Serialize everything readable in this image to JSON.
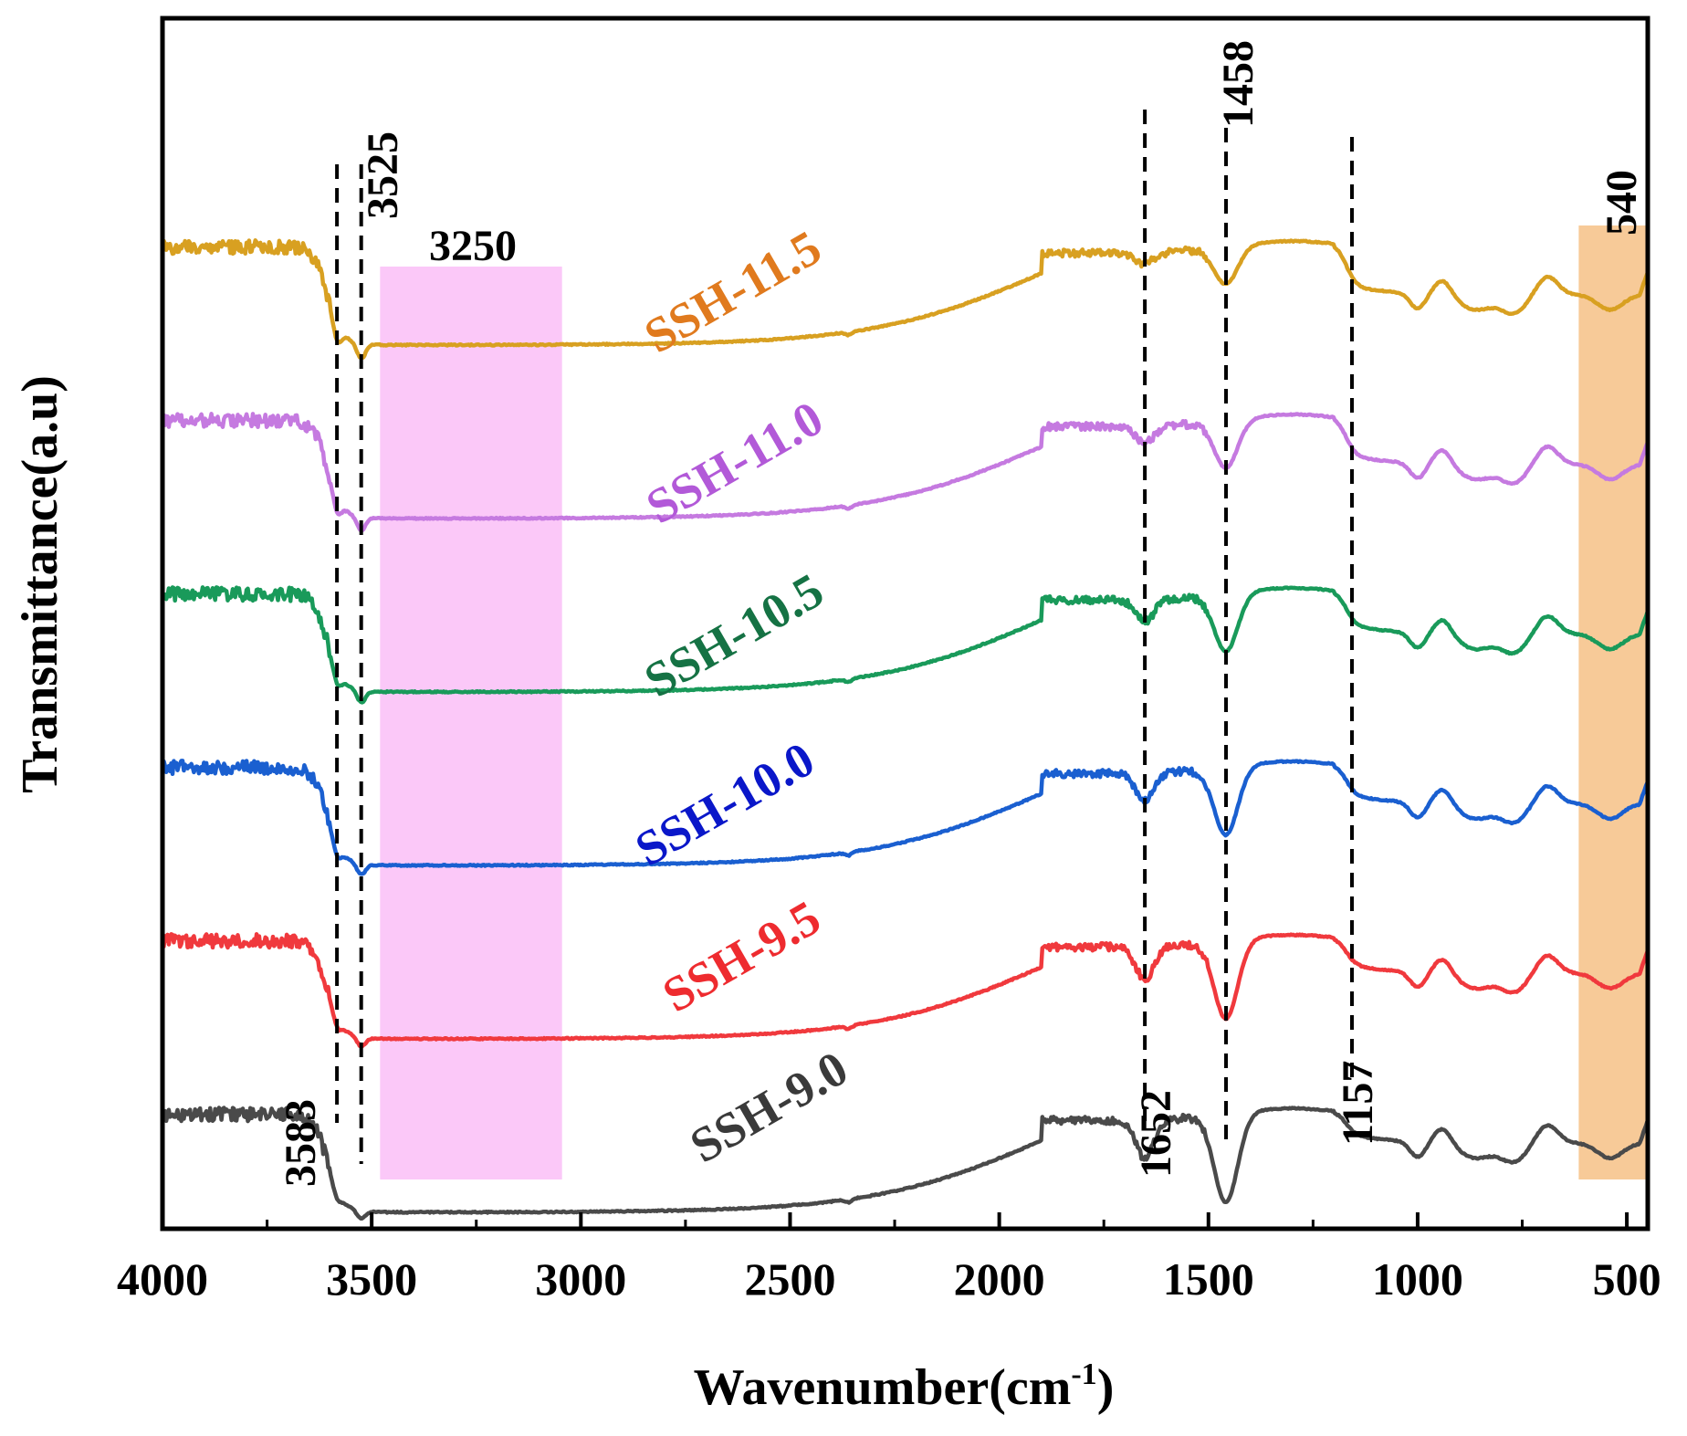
{
  "chart_data": {
    "type": "line",
    "title": "",
    "xlabel": "Wavenumber(cm",
    "xlabel_superscript": "-1",
    "xlabel_suffix": ")",
    "ylabel": "Transmittance(a.u)",
    "xlim": [
      4000,
      450
    ],
    "x_reversed": true,
    "y_ticks_shown": false,
    "x_ticks": [
      4000,
      3500,
      3000,
      2500,
      2000,
      1500,
      1000,
      500
    ],
    "x_tick_labels": [
      "4000",
      "3500",
      "3000",
      "2500",
      "2000",
      "1500",
      "1000",
      "500"
    ],
    "peak_lines": [
      {
        "name": "peak-line-3583",
        "x": 3583,
        "label": "3583"
      },
      {
        "name": "peak-line-3525",
        "x": 3525,
        "label": "3525"
      },
      {
        "name": "peak-line-1652",
        "x": 1652,
        "label": "1652"
      },
      {
        "name": "peak-line-1458",
        "x": 1458,
        "label": "1458"
      },
      {
        "name": "peak-line-1157",
        "x": 1157,
        "label": "1157"
      }
    ],
    "regions": [
      {
        "name": "region-3250",
        "from": 3480,
        "to": 3045,
        "label": "3250",
        "color": "#f9b6f5"
      },
      {
        "name": "region-540",
        "from": 615,
        "to": 450,
        "label": "540",
        "color": "#f4b36c"
      }
    ],
    "series": [
      {
        "name": "SSH-11.5",
        "color": "#d8a021",
        "label_color": "#e07a1e",
        "offset": 5
      },
      {
        "name": "SSH-11.0",
        "color": "#c57ae0",
        "label_color": "#b259d8",
        "offset": 4
      },
      {
        "name": "SSH-10.5",
        "color": "#199a5a",
        "label_color": "#157244",
        "offset": 3
      },
      {
        "name": "SSH-10.0",
        "color": "#1a5fd0",
        "label_color": "#0a17c9",
        "offset": 2
      },
      {
        "name": "SSH-9.5",
        "color": "#f0393d",
        "label_color": "#ee2b2f",
        "offset": 1
      },
      {
        "name": "SSH-9.0",
        "color": "#4a4a4a",
        "label_color": "#3a3a3a",
        "offset": 0
      }
    ]
  }
}
